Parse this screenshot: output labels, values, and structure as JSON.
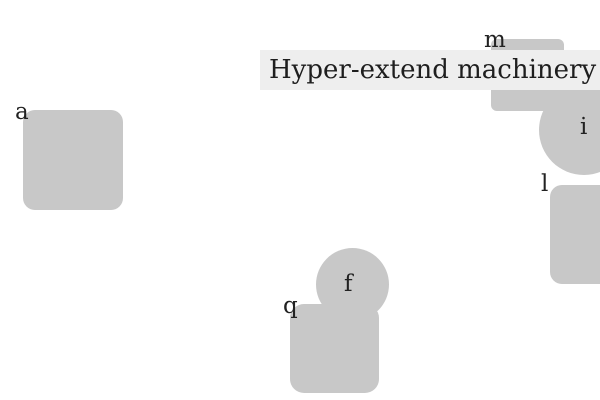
{
  "banner": {
    "text": "Hyper-extend machinery"
  },
  "shapes": {
    "a": {
      "label": "a"
    },
    "m": {
      "label": "m"
    },
    "i": {
      "label": "i"
    },
    "l": {
      "label": "l"
    },
    "f": {
      "label": "f"
    },
    "q": {
      "label": "q"
    }
  },
  "colors": {
    "shape_fill": "#c8c8c8",
    "banner_fill": "#eeeeee",
    "text": "#222222",
    "background": "#ffffff"
  }
}
